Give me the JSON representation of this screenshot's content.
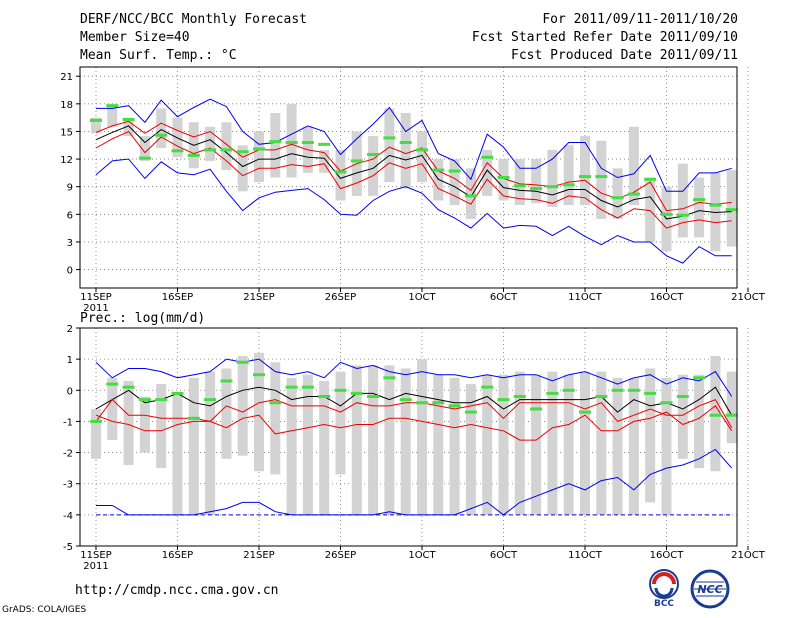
{
  "header": {
    "title": "DERF/NCC/BCC Monthly Forecast",
    "member_size": "Member Size=40",
    "variable": "Mean Surf. Temp.: °C",
    "period": "For 2011/09/11-2011/10/20",
    "fcst_started": "Fcst Started Refer Date 2011/09/10",
    "fcst_produced": "Fcst Produced Date 2011/09/11"
  },
  "footer": {
    "url": "http://cmdp.ncc.cma.gov.cn",
    "credit": "GrADS: COLA/IGES",
    "logo_left_text": "BCC",
    "logo_right_text": "NCC"
  },
  "colors": {
    "gray_bar": "#d3d3d3",
    "green": "#44dd44",
    "blue": "#0000ee",
    "red": "#ee0000",
    "black": "#000000"
  },
  "chart_data": [
    {
      "type": "line",
      "title": "Mean Surf. Temp.: °C",
      "x_tick_labels": [
        "11SEP",
        "16SEP",
        "21SEP",
        "26SEP",
        "1OCT",
        "6OCT",
        "11OCT",
        "16OCT",
        "21OCT"
      ],
      "x_tick_sublabel": "2011",
      "ylim": [
        -2,
        22
      ],
      "y_ticks": [
        "0",
        "3",
        "6",
        "9",
        "12",
        "15",
        "18",
        "21"
      ],
      "days": 40,
      "bar_low": [
        14.8,
        15.5,
        14.5,
        11.8,
        13.2,
        12.2,
        11,
        11.8,
        10.8,
        8.5,
        9.5,
        10,
        10,
        10.5,
        10.5,
        7.5,
        8,
        8,
        9.5,
        8.8,
        9.5,
        7.5,
        7,
        5.5,
        8,
        7.5,
        7,
        7.2,
        6.8,
        7,
        7,
        5.5,
        5.5,
        7,
        3,
        2,
        3.5,
        3.5,
        2,
        2.5
      ],
      "bar_high": [
        16.5,
        18,
        16.5,
        14.5,
        17.5,
        16.5,
        16,
        15.5,
        16,
        13.5,
        15,
        17,
        18,
        15.5,
        13,
        13,
        15,
        14.5,
        17.5,
        17,
        15,
        12,
        12,
        11,
        13,
        12,
        12,
        12,
        13,
        13.5,
        14.5,
        14,
        11,
        15.5,
        10,
        9,
        11.5,
        10,
        10.5,
        10.8
      ],
      "series": [
        {
          "name": "ensemble-mean",
          "color": "black",
          "values": [
            14.1,
            14.9,
            15.6,
            13.8,
            15.2,
            14.3,
            13.5,
            14.1,
            12.7,
            11.2,
            12,
            12,
            12.6,
            12.2,
            12.1,
            9.9,
            10.5,
            11,
            12.4,
            11.9,
            12.4,
            9.8,
            9,
            7.9,
            10.8,
            8.9,
            8.6,
            8.5,
            8.1,
            8.7,
            8.7,
            7.5,
            6.8,
            7.6,
            7.9,
            5.5,
            5.8,
            6.4,
            6.2,
            6.3
          ]
        },
        {
          "name": "upper-red",
          "color": "red",
          "values": [
            14.9,
            15.6,
            16.1,
            14.8,
            15.9,
            15.1,
            14.4,
            15,
            13.6,
            12.2,
            13,
            13,
            13.6,
            13,
            12.7,
            10.7,
            11.5,
            12,
            13.3,
            12.6,
            13.2,
            10.7,
            9.9,
            8.6,
            11.6,
            9.9,
            9.3,
            9.2,
            9,
            9.5,
            9.7,
            8.3,
            7.7,
            8.4,
            9.5,
            6.4,
            6.6,
            7.3,
            7.1,
            7.3
          ]
        },
        {
          "name": "lower-red",
          "color": "red",
          "values": [
            13.2,
            14.2,
            15,
            12.7,
            14.4,
            13.4,
            12.6,
            13.2,
            11.8,
            10.2,
            11,
            11,
            11.4,
            11.2,
            11.5,
            8.8,
            9.4,
            10.2,
            11.6,
            11,
            11.5,
            8.8,
            8,
            7.1,
            9.8,
            8,
            7.7,
            7.6,
            7.2,
            8,
            7.8,
            6.5,
            5.6,
            6.6,
            6.4,
            4.5,
            5.1,
            5.4,
            5.1,
            5.3
          ]
        },
        {
          "name": "upper-blue",
          "color": "blue",
          "values": [
            17.5,
            17.5,
            17.8,
            16,
            18.4,
            16.6,
            17.6,
            18.5,
            17.7,
            15,
            13.6,
            13.8,
            14.7,
            15.6,
            15,
            12.5,
            14.2,
            15.8,
            17.6,
            15,
            16.2,
            12.6,
            11.8,
            9.8,
            14.7,
            13.3,
            11,
            11,
            12,
            13.8,
            13.8,
            11,
            10,
            10.4,
            12.4,
            8.5,
            8.5,
            10.5,
            10.5,
            11
          ]
        },
        {
          "name": "lower-blue",
          "color": "blue",
          "values": [
            10.3,
            11.8,
            12,
            9.9,
            11.7,
            10.5,
            10.3,
            10.9,
            8.5,
            6.4,
            7.8,
            8.4,
            8.6,
            8.8,
            7.6,
            6,
            5.9,
            7.5,
            8.5,
            9,
            8.3,
            6.5,
            5.6,
            4.5,
            6.1,
            4.5,
            4.8,
            4.7,
            3.7,
            4.7,
            3.6,
            2.7,
            3.7,
            3,
            3,
            1.5,
            0.7,
            2.5,
            1.5,
            1.5
          ]
        },
        {
          "name": "green-markers",
          "color": "green",
          "values": [
            16.2,
            17.8,
            16.3,
            12.1,
            14.6,
            12.9,
            12.4,
            13,
            13,
            12.8,
            13.1,
            13.9,
            13.8,
            13.8,
            13.6,
            10.6,
            11.8,
            12.5,
            14.3,
            13.8,
            13,
            10.8,
            10.7,
            8,
            12.2,
            10,
            9.1,
            8.8,
            9,
            9.2,
            10.1,
            10.1,
            7.8,
            8.2,
            9.8,
            6,
            5.9,
            7.6,
            7,
            6.5
          ]
        }
      ]
    },
    {
      "type": "line",
      "title": "Prec.: log(mm/d)",
      "x_tick_labels": [
        "11SEP",
        "16SEP",
        "21SEP",
        "26SEP",
        "1OCT",
        "6OCT",
        "11OCT",
        "16OCT",
        "21OCT"
      ],
      "x_tick_sublabel": "2011",
      "ylim": [
        -5,
        2
      ],
      "y_ticks": [
        "-5",
        "-4",
        "-3",
        "-2",
        "-1",
        "0",
        "1",
        "2"
      ],
      "days": 40,
      "bar_low": [
        -2.2,
        -1.6,
        -2.4,
        -2,
        -2.5,
        -4,
        -4,
        -4,
        -2.2,
        -2.1,
        -2.6,
        -2.7,
        -4,
        -4,
        -4,
        -2.7,
        -4,
        -4,
        -4,
        -4,
        -4,
        -4,
        -4,
        -4,
        -4,
        -4,
        -4,
        -4,
        -4,
        -4,
        -4,
        -4,
        -4,
        -4,
        -3.6,
        -4,
        -2.2,
        -2.5,
        -2.6,
        -1.7
      ],
      "bar_high": [
        -0.6,
        0.4,
        0.3,
        -0.2,
        0.2,
        -0.1,
        0.4,
        0.6,
        0.7,
        1.1,
        1.2,
        0.9,
        0.4,
        0.5,
        0.3,
        0.6,
        0.8,
        0.8,
        0.8,
        0.7,
        1,
        0.5,
        0.4,
        0.2,
        0.5,
        0.5,
        0.6,
        0.5,
        0.6,
        0.5,
        0.6,
        0.6,
        0.4,
        0.4,
        0.7,
        0.4,
        0.5,
        0.5,
        1.1,
        0.6
      ],
      "series": [
        {
          "name": "ensemble-mean",
          "color": "black",
          "values": [
            -0.6,
            -0.3,
            0,
            -0.4,
            -0.3,
            -0.1,
            -0.4,
            -0.5,
            -0.2,
            0,
            0.1,
            0,
            -0.3,
            -0.2,
            -0.2,
            -0.5,
            -0.1,
            -0.1,
            -0.3,
            -0.1,
            -0.2,
            -0.3,
            -0.4,
            -0.4,
            -0.2,
            -0.6,
            -0.3,
            -0.3,
            -0.3,
            -0.3,
            -0.3,
            -0.2,
            -0.7,
            -0.3,
            -0.5,
            -0.4,
            -0.6,
            -0.3,
            0.1,
            -0.8
          ]
        },
        {
          "name": "upper-red",
          "color": "red",
          "values": [
            -1,
            -0.3,
            -0.8,
            -0.8,
            -0.9,
            -0.9,
            -0.9,
            -1,
            -0.5,
            -0.7,
            -0.4,
            -0.3,
            -0.5,
            -0.5,
            -0.5,
            -0.7,
            -0.4,
            -0.5,
            -0.5,
            -0.4,
            -0.4,
            -0.5,
            -0.6,
            -0.5,
            -0.4,
            -0.9,
            -0.4,
            -0.4,
            -0.4,
            -0.4,
            -0.6,
            -0.4,
            -1,
            -0.8,
            -0.6,
            -0.8,
            -0.8,
            -0.5,
            -0.3,
            -1.2
          ]
        },
        {
          "name": "lower-red",
          "color": "red",
          "values": [
            -0.8,
            -1,
            -1.1,
            -1.3,
            -1.3,
            -1.1,
            -1,
            -1,
            -1.2,
            -0.9,
            -0.8,
            -1.4,
            -1.3,
            -1.2,
            -1.1,
            -1.2,
            -1.1,
            -1.1,
            -0.9,
            -0.9,
            -1,
            -1.1,
            -1.2,
            -1.1,
            -1.2,
            -1.3,
            -1.6,
            -1.6,
            -1.2,
            -1.1,
            -0.8,
            -1.3,
            -1.3,
            -1,
            -0.9,
            -0.7,
            -1.1,
            -0.9,
            -0.5,
            -1.3
          ]
        },
        {
          "name": "upper-blue",
          "color": "blue",
          "values": [
            0.9,
            0.4,
            0.7,
            0.7,
            0.6,
            0.4,
            0.5,
            0.6,
            1,
            0.9,
            1,
            0.6,
            0.5,
            0.6,
            0.4,
            0.9,
            0.7,
            0.8,
            0.6,
            0.5,
            0.6,
            0.5,
            0.5,
            0.4,
            0.5,
            0.4,
            0.5,
            0.5,
            0.3,
            0.5,
            0.6,
            0.4,
            0.2,
            0.4,
            0.5,
            0.2,
            0.4,
            0.3,
            0.6,
            -0.2
          ]
        },
        {
          "name": "lower-blue",
          "color": "blue",
          "values": [
            -3.7,
            -3.7,
            -4,
            -4,
            -4,
            -4,
            -4,
            -3.9,
            -3.8,
            -3.6,
            -3.6,
            -3.9,
            -4,
            -4,
            -4,
            -4,
            -4,
            -4,
            -3.9,
            -4,
            -4,
            -4,
            -4,
            -3.8,
            -3.6,
            -4,
            -3.6,
            -3.4,
            -3.2,
            -3,
            -3.2,
            -2.9,
            -2.8,
            -3.2,
            -2.7,
            -2.5,
            -2.4,
            -2.2,
            -1.9,
            -2.5
          ]
        },
        {
          "name": "green-markers",
          "color": "green",
          "values": [
            -1,
            0.2,
            0.1,
            -0.3,
            -0.3,
            -0.1,
            -0.9,
            -0.3,
            0.3,
            0.9,
            0.5,
            -0.4,
            0.1,
            0.1,
            -0.2,
            0,
            -0.1,
            -0.2,
            0.4,
            -0.3,
            -0.4,
            -0.4,
            -0.5,
            -0.7,
            0.1,
            -0.3,
            -0.2,
            -0.6,
            -0.1,
            0,
            -0.7,
            -0.2,
            0,
            0,
            -0.1,
            -0.4,
            -0.2,
            0.4,
            -0.8,
            -0.8
          ]
        }
      ]
    }
  ]
}
